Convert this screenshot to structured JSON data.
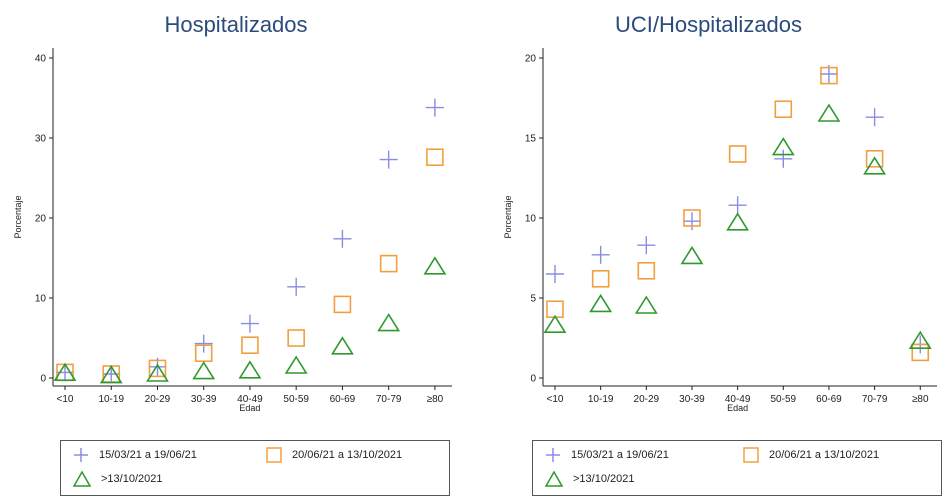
{
  "chart_data": [
    {
      "type": "scatter",
      "title": "Hospitalizados",
      "xlabel": "Edad",
      "ylabel": "Porcentaje",
      "categories": [
        "<10",
        "10-19",
        "20-29",
        "30-39",
        "40-49",
        "50-59",
        "60-69",
        "70-79",
        "≥80"
      ],
      "ylim": [
        0,
        40
      ],
      "yticks": [
        "0",
        "10",
        "20",
        "30",
        "40"
      ],
      "series": [
        {
          "name": "15/03/21 a 19/06/21",
          "marker": "plus",
          "color": "#8a8ae6",
          "values": [
            0.7,
            0.5,
            1.4,
            4.3,
            6.8,
            11.4,
            17.4,
            27.3,
            33.8
          ]
        },
        {
          "name": "20/06/21 a 13/10/2021",
          "marker": "square",
          "color": "#f0a040",
          "values": [
            0.7,
            0.5,
            1.2,
            3.1,
            4.1,
            5.0,
            9.2,
            14.3,
            27.6
          ]
        },
        {
          "name": ">13/10/2021",
          "marker": "triangle",
          "color": "#2e9a2e",
          "values": [
            0.6,
            0.3,
            0.5,
            0.8,
            0.9,
            1.5,
            3.9,
            6.8,
            13.9
          ]
        }
      ]
    },
    {
      "type": "scatter",
      "title": "UCI/Hospitalizados",
      "xlabel": "Edad",
      "ylabel": "Porcentaje",
      "categories": [
        "<10",
        "10-19",
        "20-29",
        "30-39",
        "40-49",
        "50-59",
        "60-69",
        "70-79",
        "≥80"
      ],
      "ylim": [
        0,
        20
      ],
      "yticks": [
        "0",
        "5",
        "10",
        "15",
        "20"
      ],
      "series": [
        {
          "name": "15/03/21 a 19/06/21",
          "marker": "plus",
          "color": "#8a8ae6",
          "values": [
            6.5,
            7.7,
            8.3,
            9.8,
            10.8,
            13.7,
            19.0,
            16.3,
            2.1
          ]
        },
        {
          "name": "20/06/21 a 13/10/2021",
          "marker": "square",
          "color": "#f0a040",
          "values": [
            4.3,
            6.2,
            6.7,
            10.0,
            14.0,
            16.8,
            18.9,
            13.7,
            1.6
          ]
        },
        {
          "name": ">13/10/2021",
          "marker": "triangle",
          "color": "#2e9a2e",
          "values": [
            3.3,
            4.6,
            4.5,
            7.6,
            9.7,
            14.4,
            16.5,
            13.2,
            2.3
          ]
        }
      ]
    }
  ]
}
